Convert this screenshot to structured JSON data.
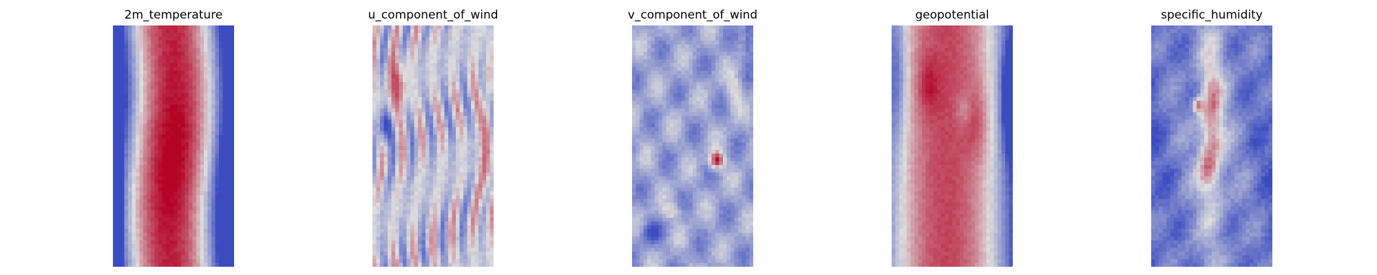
{
  "chart_data": [
    {
      "type": "heatmap",
      "title": "2m_temperature",
      "colormap": "coolwarm",
      "axis": "off",
      "grid": false,
      "legend": "none",
      "pattern": "warm central band, cool edges"
    },
    {
      "type": "heatmap",
      "title": "u_component_of_wind",
      "colormap": "coolwarm",
      "axis": "off",
      "grid": false,
      "legend": "none",
      "pattern": "alternating vertical streaks"
    },
    {
      "type": "heatmap",
      "title": "v_component_of_wind",
      "colormap": "coolwarm",
      "axis": "off",
      "grid": false,
      "legend": "none",
      "pattern": "mostly cool with small warm blobs"
    },
    {
      "type": "heatmap",
      "title": "geopotential",
      "colormap": "coolwarm",
      "axis": "off",
      "grid": false,
      "legend": "none",
      "pattern": "warm central band, cool edges"
    },
    {
      "type": "heatmap",
      "title": "specific_humidity",
      "colormap": "coolwarm",
      "axis": "off",
      "grid": false,
      "legend": "none",
      "pattern": "cool field with narrow warm central core"
    }
  ],
  "colors": {
    "cold": "#3b4cc0",
    "neutral": "#dddddd",
    "hot": "#b40426"
  }
}
